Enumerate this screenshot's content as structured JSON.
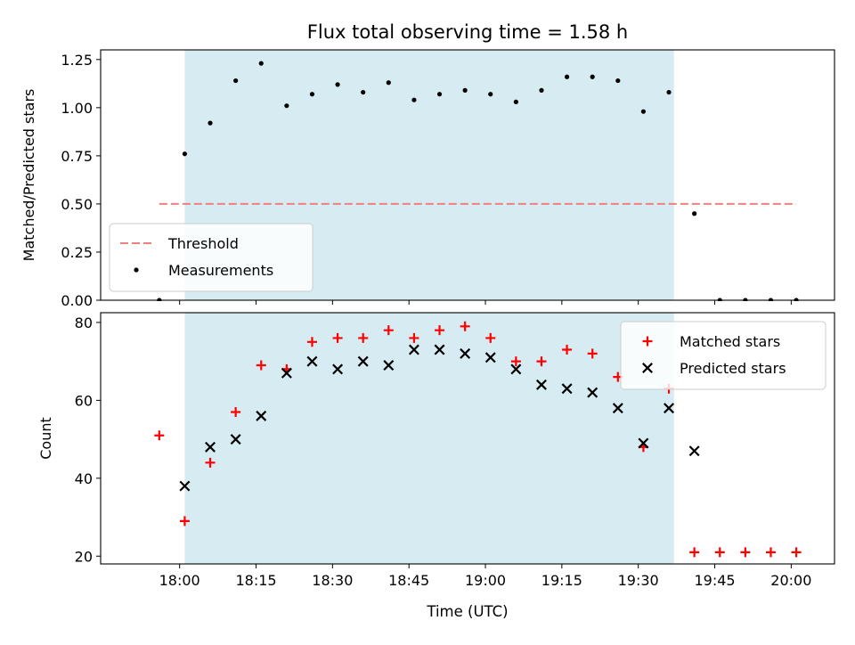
{
  "chart_data": {
    "title": "Flux total observing time = 1.58 h",
    "xlabel": "Time (UTC)",
    "x_ticks": [
      "18:00",
      "18:15",
      "18:30",
      "18:45",
      "19:00",
      "19:15",
      "19:30",
      "19:45",
      "20:00"
    ],
    "x_tick_minutes": [
      1080,
      1095,
      1110,
      1125,
      1140,
      1155,
      1170,
      1185,
      1200
    ],
    "xlim_minutes": [
      1064.5,
      1208.5
    ],
    "observing_window_minutes": [
      1081,
      1177
    ],
    "window_color": "#add8e6",
    "panels": [
      {
        "type": "scatter",
        "ylabel": "Matched/Predicted stars",
        "ylim": [
          0,
          1.3
        ],
        "y_ticks": [
          0.0,
          0.25,
          0.5,
          0.75,
          1.0,
          1.25
        ],
        "y_tick_labels": [
          "0.00",
          "0.25",
          "0.50",
          "0.75",
          "1.00",
          "1.25"
        ],
        "legend_position": "lower-left",
        "threshold": {
          "name": "Threshold",
          "value": 0.5,
          "x_range_minutes": [
            1076,
            1201
          ],
          "color": "#f08080"
        },
        "series": [
          {
            "name": "Measurements",
            "marker": "dot",
            "color": "#000000",
            "x_minutes": [
              1076,
              1081,
              1086,
              1091,
              1096,
              1101,
              1106,
              1111,
              1116,
              1121,
              1126,
              1131,
              1136,
              1141,
              1146,
              1151,
              1156,
              1161,
              1166,
              1171,
              1176,
              1181,
              1186,
              1191,
              1196,
              1201
            ],
            "y": [
              0.0,
              0.76,
              0.92,
              1.14,
              1.23,
              1.01,
              1.07,
              1.12,
              1.08,
              1.13,
              1.04,
              1.07,
              1.09,
              1.07,
              1.03,
              1.09,
              1.16,
              1.16,
              1.14,
              0.98,
              1.08,
              0.45,
              0.0,
              0.0,
              0.0,
              0.0
            ]
          }
        ]
      },
      {
        "type": "scatter",
        "ylabel": "Count",
        "ylim": [
          18,
          82.5
        ],
        "y_ticks": [
          20,
          40,
          60,
          80
        ],
        "y_tick_labels": [
          "20",
          "40",
          "60",
          "80"
        ],
        "legend_position": "top-right",
        "series": [
          {
            "name": "Matched stars",
            "marker": "plus",
            "color": "#ff0000",
            "x_minutes": [
              1076,
              1081,
              1086,
              1091,
              1096,
              1101,
              1106,
              1111,
              1116,
              1121,
              1126,
              1131,
              1136,
              1141,
              1146,
              1151,
              1156,
              1161,
              1166,
              1171,
              1176,
              1181,
              1186,
              1191,
              1196,
              1201
            ],
            "y": [
              51,
              29,
              44,
              57,
              69,
              68,
              75,
              76,
              76,
              78,
              76,
              78,
              79,
              76,
              70,
              70,
              73,
              72,
              66,
              48,
              63,
              21,
              21,
              21,
              21,
              21
            ]
          },
          {
            "name": "Predicted stars",
            "marker": "x",
            "color": "#000000",
            "x_minutes": [
              1081,
              1086,
              1091,
              1096,
              1101,
              1106,
              1111,
              1116,
              1121,
              1126,
              1131,
              1136,
              1141,
              1146,
              1151,
              1156,
              1161,
              1166,
              1171,
              1176,
              1181
            ],
            "y": [
              38,
              48,
              50,
              56,
              67,
              70,
              68,
              70,
              69,
              73,
              73,
              72,
              71,
              68,
              64,
              63,
              62,
              58,
              49,
              58,
              47
            ]
          }
        ]
      }
    ]
  }
}
